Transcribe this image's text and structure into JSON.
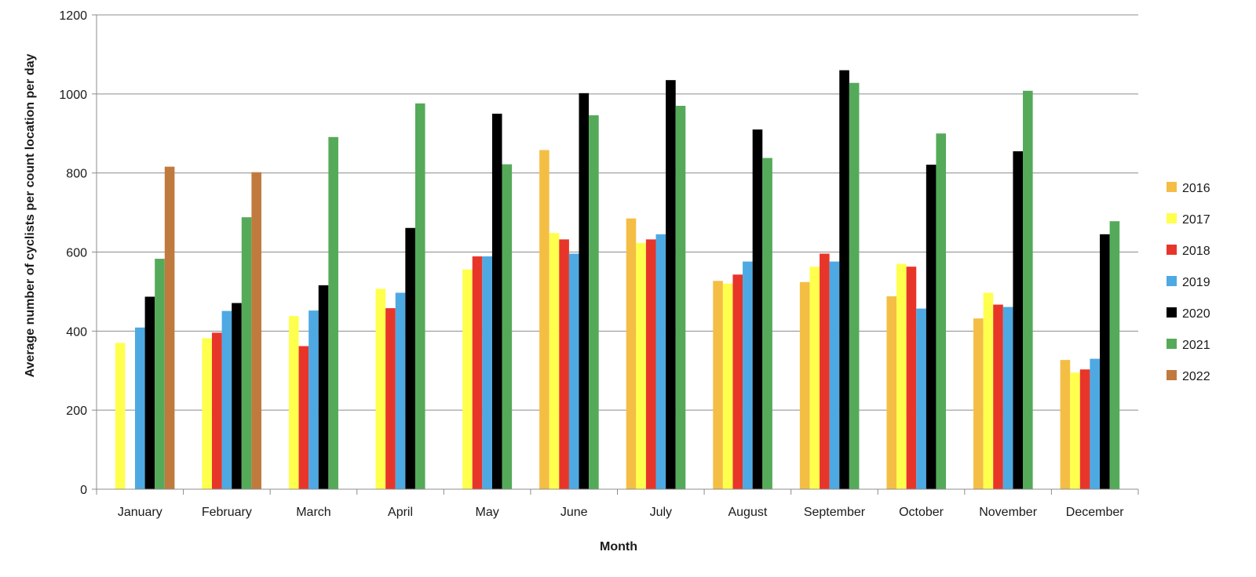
{
  "chart_data": {
    "type": "bar",
    "title": "",
    "xlabel": "Month",
    "ylabel": "Average number of cyclists  per count location  per day",
    "ylim": [
      0,
      1200
    ],
    "yticks": [
      0,
      200,
      400,
      600,
      800,
      1000,
      1200
    ],
    "grid": true,
    "legend_position": "right",
    "categories": [
      "January",
      "February",
      "March",
      "April",
      "May",
      "June",
      "July",
      "August",
      "September",
      "October",
      "November",
      "December"
    ],
    "series": [
      {
        "name": "2016",
        "color": "#F4BE45",
        "values": [
          null,
          null,
          null,
          null,
          null,
          858,
          685,
          527,
          524,
          488,
          432,
          327
        ]
      },
      {
        "name": "2017",
        "color": "#FFFF4D",
        "values": [
          370,
          382,
          438,
          507,
          556,
          648,
          623,
          520,
          563,
          570,
          497,
          295
        ]
      },
      {
        "name": "2018",
        "color": "#E8352A",
        "values": [
          null,
          396,
          362,
          458,
          589,
          632,
          632,
          543,
          596,
          563,
          467,
          303
        ]
      },
      {
        "name": "2019",
        "color": "#4EA9E3",
        "values": [
          409,
          451,
          452,
          497,
          589,
          596,
          645,
          576,
          576,
          457,
          461,
          330
        ]
      },
      {
        "name": "2020",
        "color": "#000000",
        "values": [
          487,
          471,
          516,
          661,
          950,
          1002,
          1035,
          910,
          1060,
          821,
          855,
          645
        ]
      },
      {
        "name": "2021",
        "color": "#55AA5A",
        "values": [
          583,
          688,
          891,
          976,
          822,
          946,
          970,
          838,
          1028,
          900,
          1008,
          678
        ]
      },
      {
        "name": "2022",
        "color": "#C17A3E",
        "values": [
          816,
          802,
          null,
          null,
          null,
          null,
          null,
          null,
          null,
          null,
          null,
          null
        ]
      }
    ]
  }
}
